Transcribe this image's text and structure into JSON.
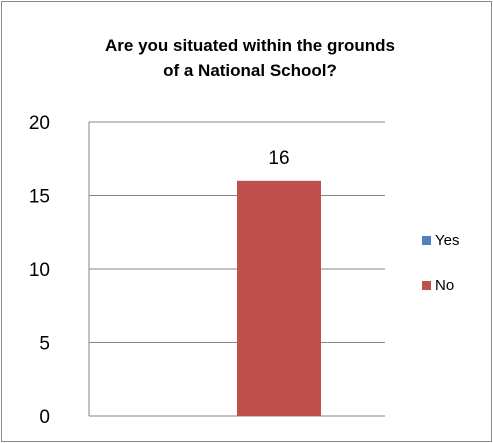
{
  "chart_data": {
    "type": "bar",
    "title_lines": [
      "Are you situated within the grounds",
      "of a National School?"
    ],
    "categories": [
      ""
    ],
    "series": [
      {
        "name": "Yes",
        "values": [
          0
        ],
        "color": "#4f81bd"
      },
      {
        "name": "No",
        "values": [
          16
        ],
        "color": "#c0504d"
      }
    ],
    "ylim": [
      0,
      20
    ],
    "yticks": [
      0,
      5,
      10,
      15,
      20
    ],
    "data_labels": [
      "16"
    ],
    "grid": true,
    "legend_position": "right",
    "xlabel": "",
    "ylabel": ""
  }
}
